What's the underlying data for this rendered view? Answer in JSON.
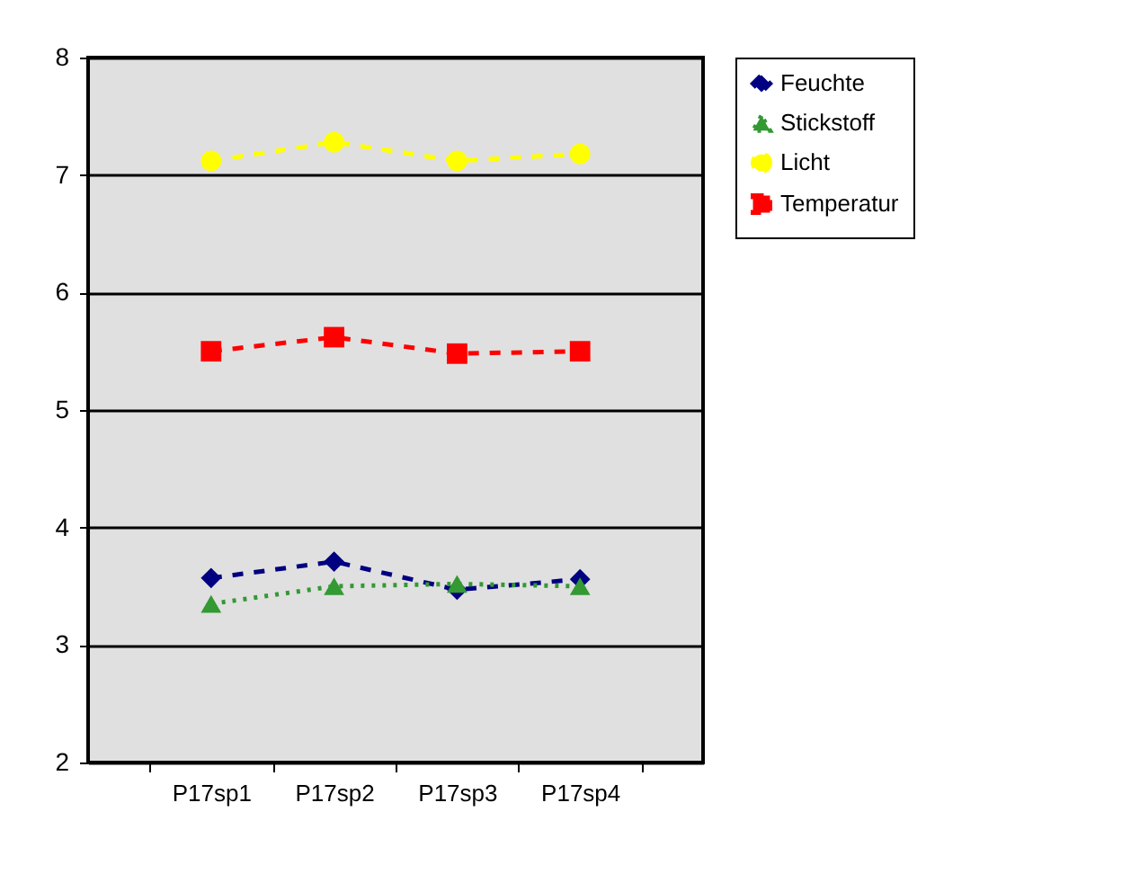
{
  "chart_data": {
    "type": "line",
    "categories": [
      "P17sp1",
      "P17sp2",
      "P17sp3",
      "P17sp4"
    ],
    "series": [
      {
        "name": "Feuchte",
        "color": "#000080",
        "marker": "diamond",
        "line_style": "dashed",
        "values": [
          3.57,
          3.71,
          3.47,
          3.56
        ]
      },
      {
        "name": "Stickstoff",
        "color": "#339933",
        "marker": "triangle",
        "line_style": "dotted",
        "values": [
          3.35,
          3.5,
          3.52,
          3.5
        ]
      },
      {
        "name": "Licht",
        "color": "#ffff00",
        "marker": "circle",
        "line_style": "dashed",
        "values": [
          7.12,
          7.28,
          7.12,
          7.18
        ]
      },
      {
        "name": "Temperatur",
        "color": "#ff0000",
        "marker": "square",
        "line_style": "dashed",
        "values": [
          5.5,
          5.62,
          5.48,
          5.5
        ]
      }
    ],
    "ylim": [
      2,
      8
    ],
    "yticks": [
      2,
      3,
      4,
      5,
      6,
      7,
      8
    ],
    "grid": "y",
    "legend": "right"
  }
}
